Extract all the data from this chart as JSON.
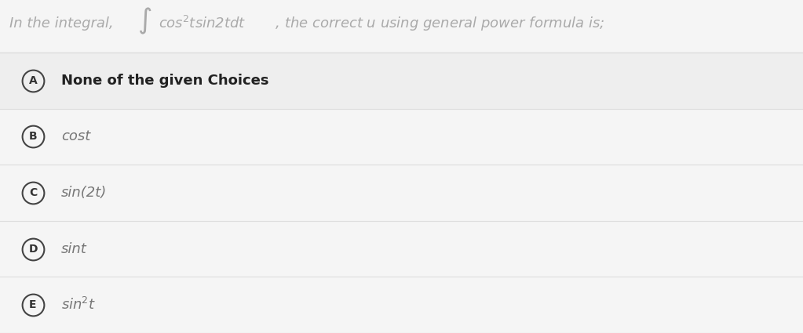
{
  "background_color": "#f5f5f5",
  "choices": [
    {
      "label": "A",
      "text": "None of the given Choices",
      "bold": true
    },
    {
      "label": "B",
      "text": "cost",
      "bold": false
    },
    {
      "label": "C",
      "text": "sin(2t)",
      "bold": false
    },
    {
      "label": "D",
      "text": "sint",
      "bold": false
    },
    {
      "label": "E",
      "text": "sin²t",
      "bold": false
    }
  ],
  "circle_color": "#444444",
  "label_color": "#333333",
  "text_color_A": "#222222",
  "text_color_other": "#777777",
  "separator_color": "#dddddd",
  "title_color": "#aaaaaa",
  "row_A_bg": "#eeeeee",
  "row_other_bg": "#f5f5f5",
  "title_fontsize": 13,
  "choice_fontsize": 13,
  "label_fontsize": 10
}
